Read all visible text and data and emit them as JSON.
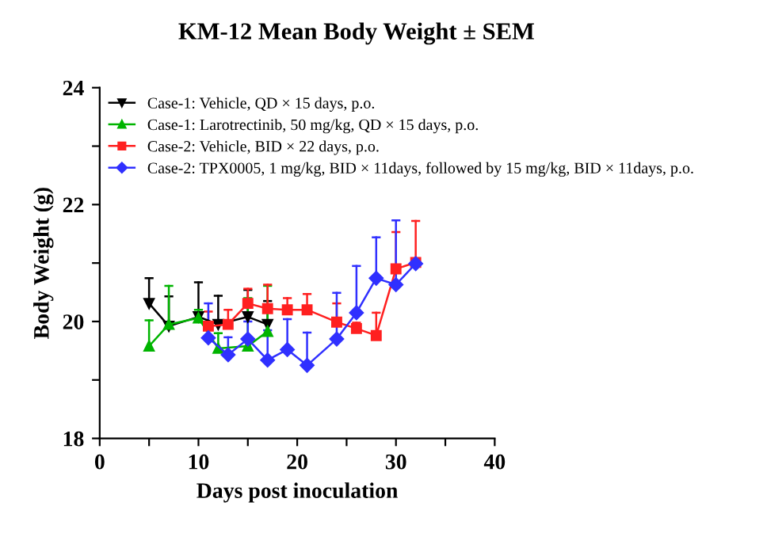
{
  "chart_data": {
    "type": "line",
    "title": "KM-12 Mean Body Weight ± SEM",
    "xlabel": "Days post inoculation",
    "ylabel": "Body Weight (g)",
    "xlim": [
      0,
      40
    ],
    "xticks": [
      0,
      {
        "value": 5,
        "label": null
      },
      10,
      {
        "value": 15,
        "label": null
      },
      20,
      {
        "value": 25,
        "label": null
      },
      30,
      {
        "value": 35,
        "label": null
      },
      40
    ],
    "ylim": [
      18,
      24
    ],
    "yticks": [
      18,
      {
        "value": 19,
        "label": null
      },
      20,
      {
        "value": 21,
        "label": null
      },
      22,
      {
        "value": 23,
        "label": null
      },
      24
    ],
    "legend": "top",
    "grid": false,
    "series": [
      {
        "name": "Case-1: Vehicle, QD × 15 days, p.o.",
        "color": "#000000",
        "marker": "triangle_down",
        "x": [
          5,
          7,
          10,
          12,
          15,
          17
        ],
        "values": [
          20.31,
          19.92,
          20.08,
          19.95,
          20.08,
          19.95
        ],
        "errors": [
          [
            20.31,
            20.74
          ],
          [
            19.92,
            20.43
          ],
          [
            20.08,
            20.67
          ],
          [
            19.95,
            20.44
          ],
          [
            20.08,
            20.54
          ],
          [
            19.95,
            20.35
          ]
        ]
      },
      {
        "name": "Case-1: Larotrectinib, 50 mg/kg, QD × 15 days, p.o.",
        "color": "#00b400",
        "marker": "triangle",
        "x": [
          5,
          7,
          10,
          12,
          15,
          17
        ],
        "values": [
          19.58,
          19.95,
          20.06,
          19.54,
          19.58,
          19.83
        ],
        "errors": [
          [
            19.58,
            20.02
          ],
          [
            19.95,
            20.61
          ],
          [
            20.06,
            20.2
          ],
          [
            19.54,
            19.8
          ],
          [
            19.58,
            20.4
          ],
          [
            19.83,
            20.61
          ]
        ]
      },
      {
        "name": "Case-2: Vehicle, BID × 22 days, p.o.",
        "color": "#ff2020",
        "marker": "square",
        "x": [
          11,
          13,
          15,
          17,
          19,
          21,
          24,
          26,
          28,
          30,
          32
        ],
        "values": [
          19.92,
          19.95,
          20.31,
          20.22,
          20.2,
          20.2,
          19.99,
          19.88,
          19.76,
          20.9,
          21.01
        ],
        "errors": [
          [
            19.92,
            20.17
          ],
          [
            19.95,
            20.2
          ],
          [
            20.31,
            20.56
          ],
          [
            20.22,
            20.63
          ],
          [
            20.2,
            20.4
          ],
          [
            20.2,
            20.47
          ],
          [
            19.99,
            20.31
          ],
          [
            19.88,
            19.98
          ],
          [
            19.76,
            20.15
          ],
          [
            20.9,
            21.53
          ],
          [
            21.01,
            21.72
          ]
        ]
      },
      {
        "name": "Case-2: TPX0005, 1 mg/kg, BID × 11days, followed by 15 mg/kg, BID × 11days, p.o.",
        "color": "#3030ff",
        "marker": "diamond",
        "x": [
          11,
          13,
          15,
          17,
          19,
          21,
          24,
          26,
          28,
          30,
          32
        ],
        "values": [
          19.72,
          19.43,
          19.7,
          19.34,
          19.52,
          19.25,
          19.7,
          20.15,
          20.74,
          20.63,
          20.99
        ],
        "errors": [
          [
            19.72,
            20.31
          ],
          [
            19.43,
            19.73
          ],
          [
            19.7,
            20.0
          ],
          [
            19.34,
            19.85
          ],
          [
            19.52,
            20.04
          ],
          [
            19.25,
            19.81
          ],
          [
            19.7,
            20.49
          ],
          [
            20.15,
            20.95
          ],
          [
            20.74,
            21.44
          ],
          [
            20.63,
            21.73
          ],
          null
        ]
      }
    ]
  }
}
